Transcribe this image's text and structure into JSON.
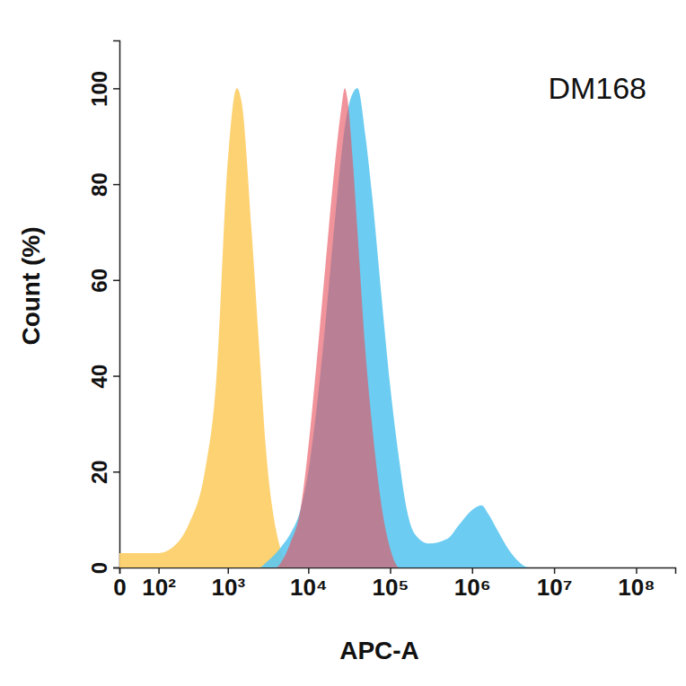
{
  "chart_data": {
    "type": "area",
    "title": "DM168",
    "x_label": "APC-A",
    "y_label": "Count (%)",
    "log": "x",
    "grid": false,
    "x": [
      0,
      50,
      100,
      200,
      300,
      500,
      700,
      1000,
      1300,
      1500,
      2000,
      2500,
      3000,
      4000,
      5000,
      6000,
      8000,
      10000,
      13000,
      16000,
      20000,
      25000,
      28000,
      30000,
      35000,
      40000,
      50000,
      60000,
      80000,
      100000,
      130000,
      160000,
      200000,
      300000,
      500000,
      700000,
      1000000,
      1300000,
      1600000,
      2000000,
      3000000,
      5000000,
      10000000
    ],
    "series": [
      {
        "color": "#fdd06a",
        "values": [
          3,
          3,
          3,
          5,
          9,
          20,
          38,
          85,
          100,
          97,
          70,
          45,
          25,
          8,
          2,
          0,
          0,
          0,
          0,
          0,
          0,
          0,
          0,
          0,
          0,
          0,
          0,
          0,
          0,
          0,
          0,
          0,
          0,
          0,
          0,
          0,
          0,
          0,
          0,
          0,
          0,
          0,
          0
        ]
      },
      {
        "color": "#5cc6ef",
        "values": [
          0,
          0,
          0,
          0,
          0,
          0,
          0,
          0,
          0,
          0,
          0,
          0,
          1,
          3,
          5,
          7,
          12,
          20,
          35,
          50,
          68,
          85,
          92,
          95,
          99,
          100,
          90,
          78,
          55,
          38,
          22,
          12,
          7,
          5,
          6,
          9,
          12,
          13,
          11,
          8,
          3,
          0,
          0
        ]
      },
      {
        "color": "#e8505c",
        "values": [
          0,
          0,
          0,
          0,
          0,
          0,
          0,
          0,
          0,
          0,
          0,
          0,
          0,
          0,
          2,
          5,
          12,
          25,
          45,
          62,
          80,
          95,
          100,
          98,
          85,
          70,
          45,
          30,
          12,
          4,
          0,
          0,
          0,
          0,
          0,
          0,
          0,
          0,
          0,
          0,
          0,
          0,
          0
        ]
      }
    ],
    "xlim": [
      0,
      300000000
    ],
    "xticks": [
      0,
      {
        "value": 100,
        "label": "10²"
      },
      {
        "value": 1000,
        "label": "10³"
      },
      {
        "value": 10000,
        "label": "10⁴"
      },
      {
        "value": 100000,
        "label": "10⁵"
      },
      {
        "value": 1000000,
        "label": "10⁶"
      },
      {
        "value": 10000000,
        "label": "10⁷"
      },
      {
        "value": 100000000,
        "label": "10⁸"
      }
    ],
    "ylim": [
      0,
      110
    ],
    "yticks": [
      0,
      20,
      40,
      60,
      80,
      100
    ]
  }
}
